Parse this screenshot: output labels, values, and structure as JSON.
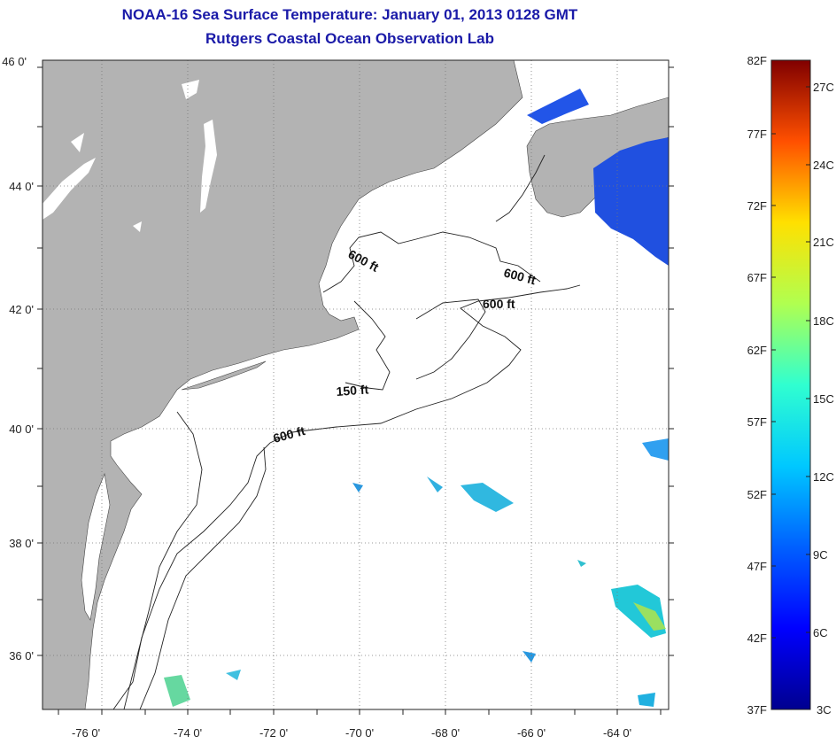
{
  "title": {
    "line1": "NOAA-16 Sea Surface Temperature:  January 01, 2013 0128 GMT",
    "line2": "Rutgers Coastal Ocean Observation Lab"
  },
  "map": {
    "lat_ticks": [
      "46 0'",
      "44 0'",
      "42 0'",
      "40 0'",
      "38 0'",
      "36 0'"
    ],
    "lon_ticks": [
      "-76 0'",
      "-74 0'",
      "-72 0'",
      "-70 0'",
      "-68 0'",
      "-66 0'",
      "-64 0'"
    ],
    "contour_labels": [
      "600 ft",
      "600 ft",
      "600 ft",
      "150 ft",
      "600 ft"
    ],
    "colors": {
      "land": "#b3b3b3",
      "ocean": "#ffffff",
      "grid": "#777777",
      "title": "#1a1aa8"
    }
  },
  "colorbar": {
    "fahrenheit_labels": [
      "82F",
      "77F",
      "72F",
      "67F",
      "62F",
      "57F",
      "52F",
      "47F",
      "42F",
      "37F"
    ],
    "celsius_labels": [
      "27C",
      "24C",
      "21C",
      "18C",
      "15C",
      "12C",
      "9C",
      "6C",
      "3C"
    ],
    "colormap": "jet"
  }
}
